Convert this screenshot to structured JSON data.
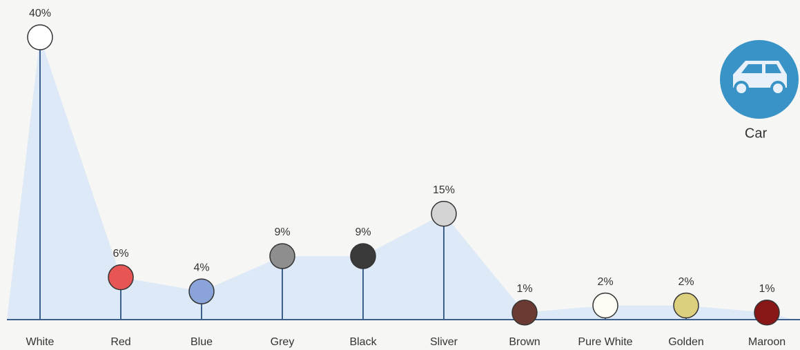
{
  "chart_data": {
    "type": "lollipop",
    "categories": [
      "White",
      "Red",
      "Blue",
      "Grey",
      "Black",
      "Sliver",
      "Brown",
      "Pure White",
      "Golden",
      "Maroon"
    ],
    "values": [
      40,
      6,
      4,
      9,
      9,
      15,
      1,
      2,
      2,
      1
    ],
    "value_labels": [
      "40%",
      "6%",
      "4%",
      "9%",
      "9%",
      "15%",
      "1%",
      "2%",
      "2%",
      "1%"
    ],
    "colors": [
      "#ffffff",
      "#e85555",
      "#8aa3d8",
      "#8e8e8e",
      "#3a3a3a",
      "#d4d4d4",
      "#6b3a33",
      "#fdfdf5",
      "#dccf7e",
      "#8a1717"
    ],
    "ylim": [
      0,
      40
    ],
    "annotation": "Car"
  }
}
